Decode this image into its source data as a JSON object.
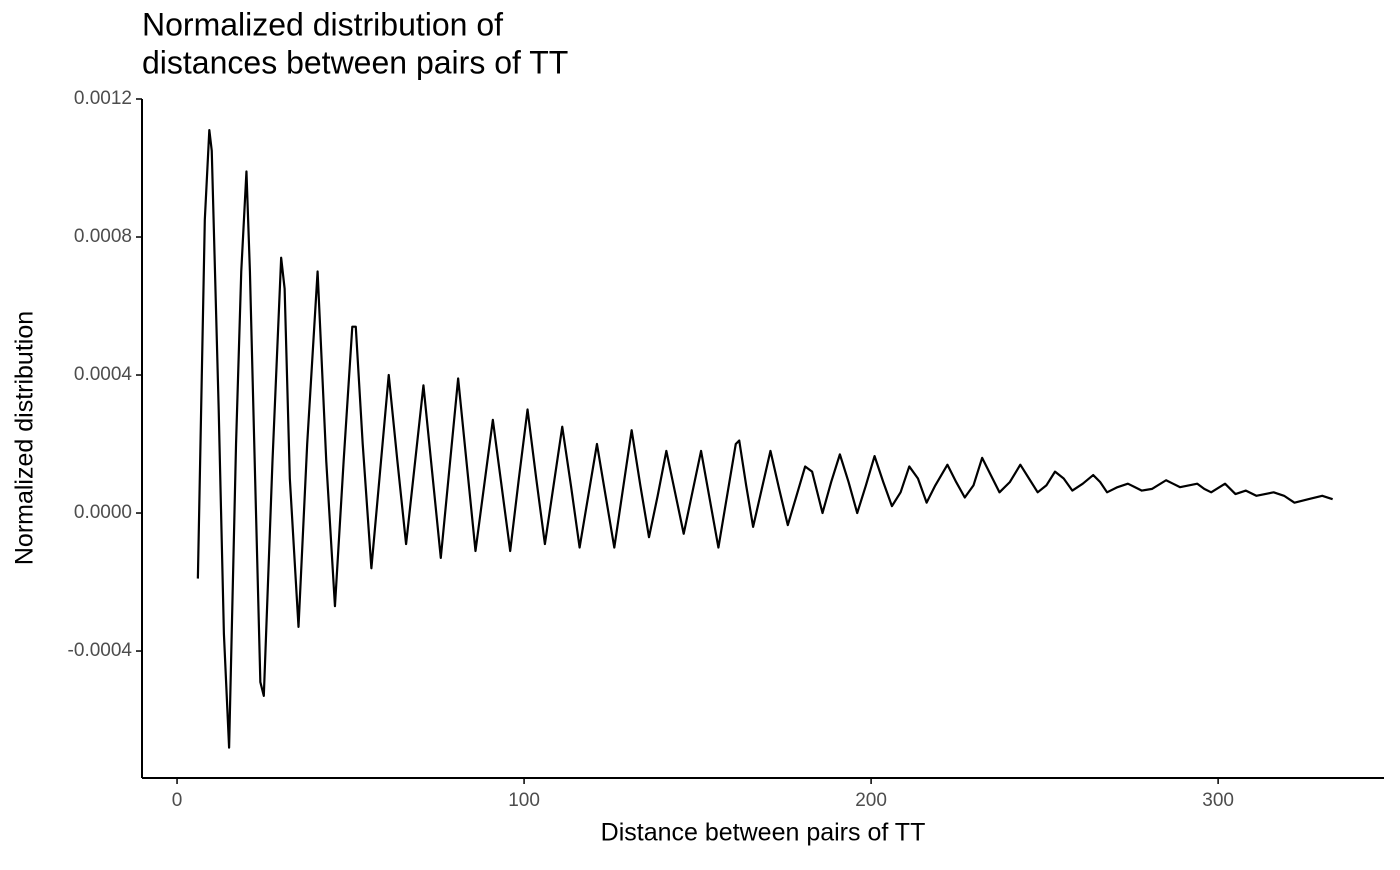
{
  "chart_data": {
    "type": "line",
    "title": [
      "Normalized distribution of",
      "distances between pairs of TT"
    ],
    "x_label": "Distance between pairs of TT",
    "y_label": "Normalized distribution",
    "x": [
      6,
      8,
      9.3,
      10,
      12,
      13.5,
      15,
      17,
      18.5,
      20,
      21,
      22.5,
      24,
      25,
      27.5,
      30,
      31,
      32.5,
      35,
      37.5,
      40.5,
      43,
      45.5,
      48,
      50.5,
      51.5,
      53.5,
      56,
      58.5,
      61,
      63.5,
      66,
      68.5,
      71,
      73.5,
      76,
      78.5,
      81,
      83.5,
      86,
      88.5,
      91,
      93.5,
      96,
      98.5,
      101,
      103.5,
      106,
      108.5,
      111,
      113.5,
      116,
      118.5,
      121,
      123.5,
      126,
      128.5,
      131,
      133.5,
      136,
      138.5,
      141,
      143.5,
      146,
      148.5,
      151,
      153.5,
      156,
      158.5,
      161,
      162,
      164,
      166,
      168.5,
      171,
      173.5,
      176,
      178.5,
      181,
      183,
      186,
      188.5,
      191,
      193.5,
      196,
      198.5,
      201,
      203.5,
      206,
      208.5,
      211,
      213.5,
      216,
      218.5,
      222,
      224.5,
      227,
      229.5,
      232,
      234.5,
      237,
      240,
      243,
      245.5,
      248,
      250.5,
      253,
      255.5,
      258,
      261,
      264,
      266,
      268,
      271,
      274,
      276,
      278,
      281,
      285,
      287,
      289,
      294,
      296,
      298,
      302,
      305,
      308,
      311,
      316,
      319,
      322,
      326,
      330,
      333
    ],
    "series": [
      {
        "color": "#000000",
        "values": [
          -0.00019,
          0.00085,
          0.00111,
          0.00105,
          0.0003,
          -0.00035,
          -0.00068,
          0.0002,
          0.0007,
          0.00099,
          0.0007,
          0.0001,
          -0.00049,
          -0.00053,
          0.00015,
          0.00074,
          0.00065,
          0.0001,
          -0.00033,
          0.0002,
          0.0007,
          0.00015,
          -0.00027,
          0.00015,
          0.00054,
          0.00054,
          0.0002,
          -0.00016,
          0.00012,
          0.0004,
          0.00015,
          -9e-05,
          0.00014,
          0.00037,
          0.00012,
          -0.00013,
          0.00013,
          0.00039,
          0.00014,
          -0.00011,
          8e-05,
          0.00027,
          8e-05,
          -0.00011,
          0.0001,
          0.0003,
          0.0001,
          -9e-05,
          8e-05,
          0.00025,
          8e-05,
          -0.0001,
          5e-05,
          0.0002,
          5e-05,
          -0.0001,
          7e-05,
          0.00024,
          8e-05,
          -7e-05,
          5e-05,
          0.00018,
          6e-05,
          -6e-05,
          6e-05,
          0.00018,
          4e-05,
          -0.0001,
          5e-05,
          0.0002,
          0.00021,
          8e-05,
          -4e-05,
          7e-05,
          0.00018,
          7e-05,
          -3.5e-05,
          5e-05,
          0.000135,
          0.00012,
          0,
          9e-05,
          0.00017,
          9e-05,
          0,
          8e-05,
          0.000165,
          9e-05,
          2e-05,
          6e-05,
          0.000135,
          0.0001,
          3e-05,
          8e-05,
          0.00014,
          9e-05,
          4.5e-05,
          8e-05,
          0.00016,
          0.00011,
          6e-05,
          9e-05,
          0.00014,
          0.0001,
          6e-05,
          8e-05,
          0.00012,
          0.0001,
          6.5e-05,
          8.5e-05,
          0.00011,
          9e-05,
          6e-05,
          7.5e-05,
          8.5e-05,
          7.5e-05,
          6.5e-05,
          7e-05,
          9.5e-05,
          8.5e-05,
          7.5e-05,
          8.5e-05,
          7e-05,
          6e-05,
          8.5e-05,
          5.5e-05,
          6.5e-05,
          5e-05,
          6e-05,
          5e-05,
          3e-05,
          4e-05,
          5e-05,
          4e-05
        ]
      }
    ],
    "xlim": [
      -10.1,
      347.8
    ],
    "xticks": [
      0,
      100,
      200,
      300
    ],
    "ylim": [
      -0.000768,
      0.0012
    ],
    "yticks": [
      -0.0004,
      {
        "value": 0,
        "label": "0.0000"
      },
      0.0004,
      0.0008,
      0.0012
    ],
    "grid": false
  }
}
